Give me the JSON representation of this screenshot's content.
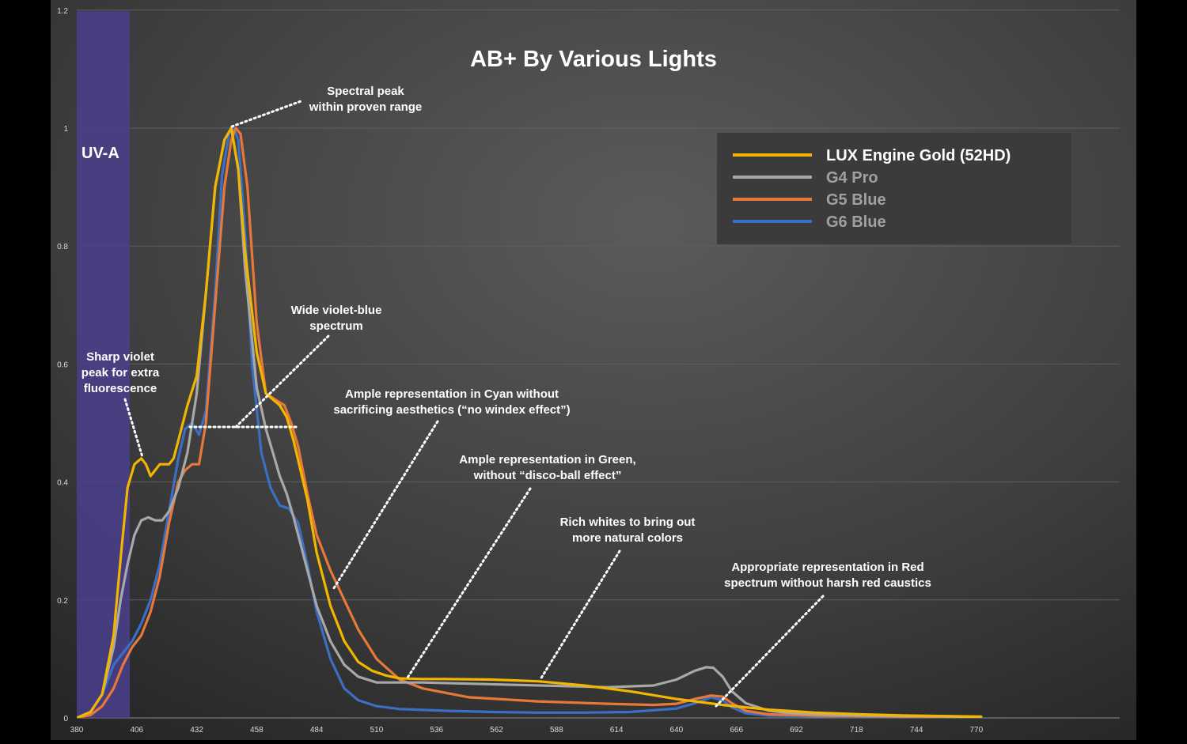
{
  "chart_data": {
    "type": "line",
    "title": "AB+ By Various Lights",
    "xlabel": "",
    "ylabel": "",
    "xlim": [
      380,
      792
    ],
    "ylim": [
      0,
      1.2
    ],
    "x_ticks": [
      "380",
      "406",
      "432",
      "458",
      "484",
      "510",
      "536",
      "562",
      "588",
      "614",
      "640",
      "666",
      "692",
      "718",
      "744",
      "770"
    ],
    "y_ticks": [
      "0",
      "0.2",
      "0.4",
      "0.6",
      "0.8",
      "1",
      "1.2"
    ],
    "grid": true,
    "legend_position": "top-right",
    "uv_band": {
      "label": "UV-A",
      "from": 380,
      "to": 403
    },
    "series": [
      {
        "name": "LUX Engine Gold (52HD)",
        "color": "#f2b600",
        "x": [
          380,
          386,
          391,
          396,
          399,
          402,
          405,
          408,
          410,
          412,
          414,
          416,
          418,
          420,
          422,
          424,
          426,
          428,
          432,
          436,
          440,
          444,
          447,
          450,
          453,
          458,
          462,
          465,
          468,
          471,
          474,
          480,
          484,
          490,
          496,
          502,
          508,
          514,
          520,
          530,
          540,
          560,
          580,
          600,
          620,
          640,
          660,
          680,
          700,
          720,
          740,
          760,
          772
        ],
        "y": [
          0.0,
          0.01,
          0.04,
          0.14,
          0.27,
          0.39,
          0.43,
          0.44,
          0.43,
          0.41,
          0.42,
          0.43,
          0.43,
          0.43,
          0.44,
          0.47,
          0.5,
          0.53,
          0.58,
          0.72,
          0.9,
          0.98,
          1.0,
          0.93,
          0.79,
          0.62,
          0.55,
          0.54,
          0.53,
          0.51,
          0.47,
          0.37,
          0.28,
          0.19,
          0.13,
          0.095,
          0.08,
          0.072,
          0.067,
          0.066,
          0.066,
          0.065,
          0.062,
          0.055,
          0.045,
          0.032,
          0.022,
          0.014,
          0.009,
          0.006,
          0.004,
          0.003,
          0.002
        ]
      },
      {
        "name": "G4 Pro",
        "color": "#a8a8a8",
        "x": [
          380,
          386,
          391,
          396,
          399,
          402,
          405,
          408,
          411,
          414,
          417,
          420,
          424,
          428,
          432,
          436,
          440,
          444,
          447,
          450,
          453,
          458,
          462,
          465,
          468,
          471,
          474,
          480,
          484,
          490,
          496,
          502,
          510,
          520,
          530,
          550,
          570,
          590,
          610,
          630,
          640,
          648,
          653,
          656,
          660,
          664,
          670,
          680,
          690,
          700,
          720,
          740,
          760,
          772
        ],
        "y": [
          0.0,
          0.01,
          0.04,
          0.12,
          0.2,
          0.26,
          0.31,
          0.335,
          0.34,
          0.335,
          0.335,
          0.35,
          0.39,
          0.45,
          0.55,
          0.72,
          0.9,
          0.98,
          1.0,
          0.93,
          0.76,
          0.56,
          0.49,
          0.45,
          0.41,
          0.38,
          0.34,
          0.25,
          0.19,
          0.13,
          0.09,
          0.07,
          0.06,
          0.06,
          0.06,
          0.058,
          0.056,
          0.054,
          0.052,
          0.055,
          0.065,
          0.08,
          0.086,
          0.085,
          0.07,
          0.045,
          0.025,
          0.012,
          0.008,
          0.006,
          0.004,
          0.003,
          0.002,
          0.002
        ]
      },
      {
        "name": "G5 Blue",
        "color": "#e8783a",
        "x": [
          380,
          386,
          391,
          396,
          400,
          404,
          408,
          412,
          416,
          420,
          424,
          427,
          430,
          433,
          436,
          440,
          444,
          447,
          449,
          451,
          454,
          458,
          462,
          466,
          470,
          473,
          476,
          480,
          484,
          490,
          496,
          502,
          510,
          520,
          530,
          550,
          580,
          610,
          630,
          640,
          648,
          655,
          660,
          664,
          670,
          680,
          700,
          720,
          740,
          760,
          772
        ],
        "y": [
          0.0,
          0.005,
          0.02,
          0.05,
          0.09,
          0.12,
          0.14,
          0.18,
          0.24,
          0.33,
          0.4,
          0.42,
          0.43,
          0.43,
          0.5,
          0.7,
          0.9,
          0.98,
          1.0,
          0.99,
          0.9,
          0.67,
          0.55,
          0.54,
          0.53,
          0.5,
          0.46,
          0.38,
          0.31,
          0.25,
          0.2,
          0.15,
          0.1,
          0.065,
          0.05,
          0.035,
          0.028,
          0.024,
          0.022,
          0.024,
          0.032,
          0.038,
          0.036,
          0.025,
          0.012,
          0.006,
          0.004,
          0.003,
          0.002,
          0.002,
          0.002
        ]
      },
      {
        "name": "G6 Blue",
        "color": "#3b6fc4",
        "x": [
          380,
          386,
          391,
          396,
          400,
          404,
          408,
          412,
          416,
          420,
          424,
          427,
          430,
          433,
          436,
          440,
          443,
          446,
          448,
          450,
          453,
          456,
          460,
          464,
          468,
          472,
          476,
          480,
          484,
          490,
          496,
          502,
          510,
          520,
          540,
          560,
          580,
          600,
          620,
          640,
          648,
          655,
          660,
          664,
          670,
          680,
          700,
          720,
          740,
          772
        ],
        "y": [
          0.0,
          0.01,
          0.04,
          0.09,
          0.11,
          0.13,
          0.16,
          0.2,
          0.26,
          0.35,
          0.44,
          0.49,
          0.5,
          0.48,
          0.52,
          0.72,
          0.92,
          0.99,
          1.0,
          0.98,
          0.82,
          0.6,
          0.45,
          0.39,
          0.36,
          0.355,
          0.33,
          0.26,
          0.18,
          0.1,
          0.05,
          0.03,
          0.02,
          0.015,
          0.012,
          0.01,
          0.009,
          0.009,
          0.01,
          0.016,
          0.025,
          0.035,
          0.03,
          0.018,
          0.008,
          0.004,
          0.003,
          0.002,
          0.002,
          0.001
        ]
      }
    ],
    "annotations": [
      {
        "id": "peak",
        "lines": [
          "Spectral peak",
          "within proven range"
        ]
      },
      {
        "id": "wide",
        "lines": [
          "Wide violet-blue",
          "spectrum"
        ]
      },
      {
        "id": "violet",
        "lines": [
          "Sharp violet",
          "peak for extra",
          "fluorescence"
        ]
      },
      {
        "id": "cyan",
        "lines": [
          "Ample representation in Cyan without",
          "sacrificing aesthetics (“no windex effect”)"
        ]
      },
      {
        "id": "green",
        "lines": [
          "Ample representation in Green,",
          "without “disco-ball effect”"
        ]
      },
      {
        "id": "whites",
        "lines": [
          "Rich whites to bring out",
          "more natural colors"
        ]
      },
      {
        "id": "red",
        "lines": [
          "Appropriate representation in Red",
          "spectrum without harsh red caustics"
        ]
      }
    ]
  }
}
